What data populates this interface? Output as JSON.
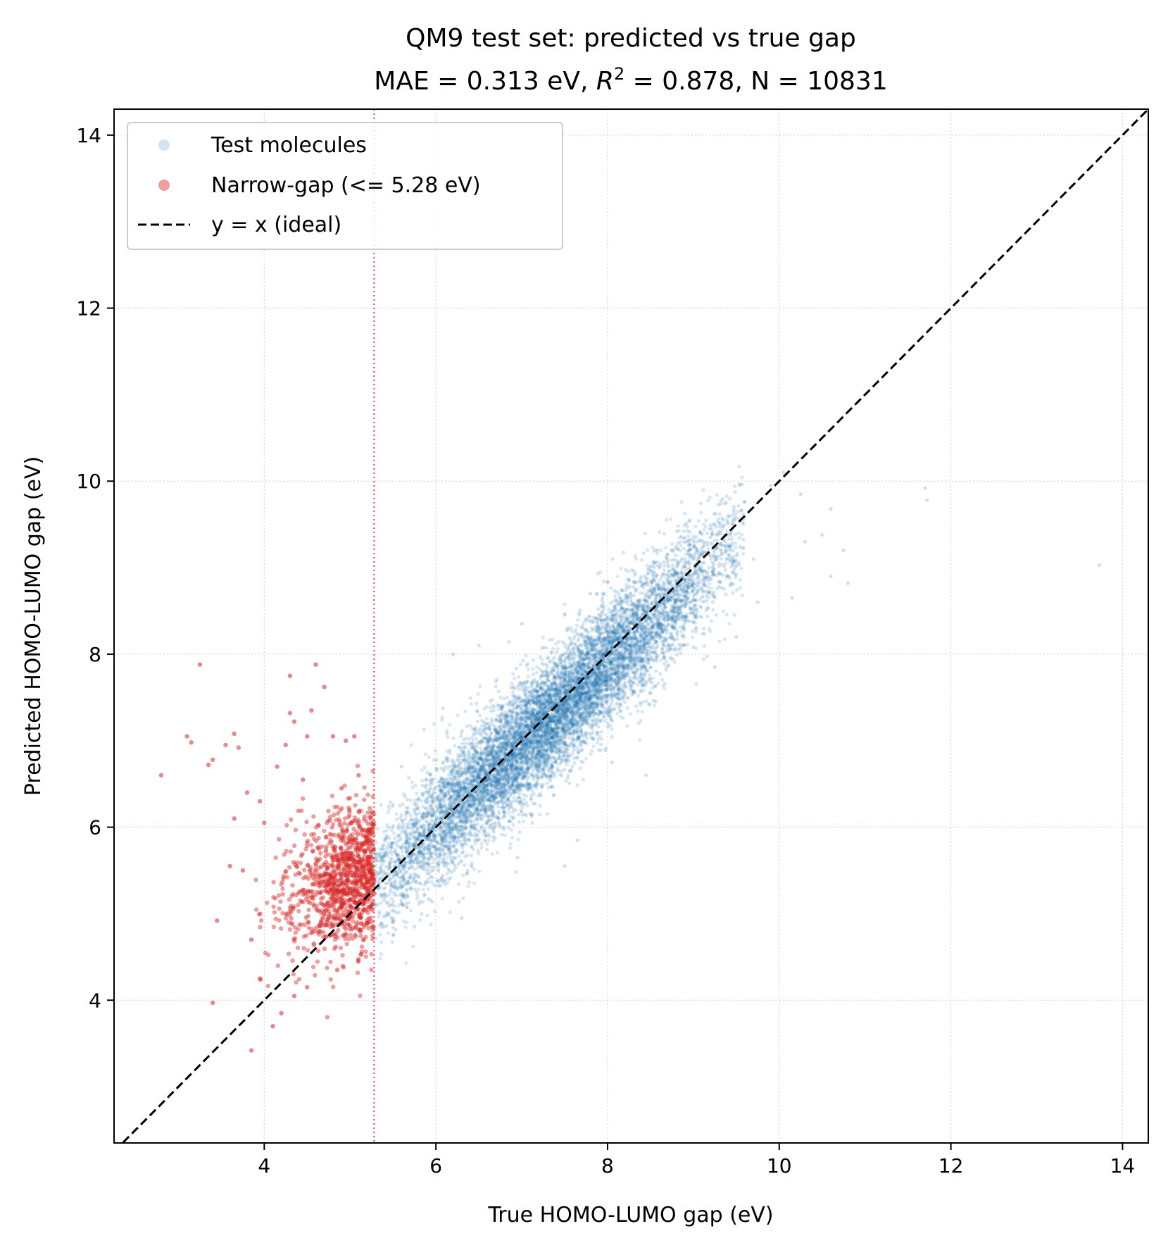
{
  "chart_data": {
    "type": "scatter",
    "title": "QM9 test set: predicted vs true gap",
    "subtitle": {
      "prefix": "MAE = 0.313 eV, ",
      "r_symbol": "R",
      "r_exponent": "2",
      "suffix": " = 0.878, N = 10831"
    },
    "xlabel": "True HOMO-LUMO gap (eV)",
    "ylabel": "Predicted HOMO-LUMO gap (eV)",
    "xlim": [
      2.25,
      14.3
    ],
    "ylim": [
      2.35,
      14.3
    ],
    "xticks": [
      "4",
      "6",
      "8",
      "10",
      "12",
      "14"
    ],
    "yticks": [
      "4",
      "6",
      "8",
      "10",
      "12",
      "14"
    ],
    "grid": true,
    "legend_position": "top-left",
    "threshold": 5.28,
    "colors": {
      "test": "#1f77b4",
      "narrow": "#d62728",
      "ideal": "#000000",
      "threshold": "#d62728"
    },
    "series": [
      {
        "name": "Test molecules",
        "kind": "points",
        "bulk": {
          "x_range": [
            5.28,
            9.6
          ],
          "slope": 0.93,
          "intercept": 0.45,
          "spread": 0.35,
          "count": 9700
        },
        "points": [
          [
            11.7,
            9.92
          ],
          [
            11.72,
            9.78
          ],
          [
            13.73,
            9.03
          ],
          [
            10.25,
            9.85
          ],
          [
            10.6,
            9.68
          ],
          [
            10.5,
            9.38
          ],
          [
            10.75,
            9.2
          ],
          [
            10.8,
            8.82
          ],
          [
            10.6,
            8.9
          ],
          [
            10.15,
            8.65
          ],
          [
            9.75,
            8.6
          ],
          [
            9.5,
            8.2
          ],
          [
            9.25,
            7.85
          ],
          [
            10.05,
            10.1
          ],
          [
            9.9,
            9.95
          ],
          [
            7.65,
            5.85
          ],
          [
            6.95,
            5.65
          ],
          [
            7.5,
            5.55
          ],
          [
            6.3,
            4.95
          ],
          [
            5.6,
            6.7
          ],
          [
            6.2,
            8.0
          ],
          [
            6.5,
            8.1
          ],
          [
            7.0,
            8.35
          ],
          [
            8.45,
            6.6
          ],
          [
            8.05,
            6.75
          ],
          [
            5.5,
            4.75
          ],
          [
            5.75,
            4.85
          ],
          [
            9.7,
            9.1
          ],
          [
            10.3,
            9.3
          ],
          [
            7.8,
            8.7
          ]
        ]
      },
      {
        "name": "Narrow-gap (<= 5.28 eV)",
        "kind": "points",
        "bulk": {
          "x_range": [
            3.9,
            5.28
          ],
          "center_y": 5.35,
          "spread": 0.4,
          "count": 1080
        },
        "points": [
          [
            2.8,
            6.6
          ],
          [
            3.1,
            7.05
          ],
          [
            3.15,
            6.98
          ],
          [
            3.25,
            7.88
          ],
          [
            3.35,
            6.72
          ],
          [
            3.4,
            6.78
          ],
          [
            3.4,
            3.97
          ],
          [
            3.55,
            6.95
          ],
          [
            3.65,
            7.08
          ],
          [
            3.7,
            6.92
          ],
          [
            3.65,
            6.1
          ],
          [
            3.8,
            6.4
          ],
          [
            3.45,
            4.92
          ],
          [
            3.6,
            5.55
          ],
          [
            3.85,
            3.42
          ],
          [
            4.1,
            3.7
          ],
          [
            4.3,
            7.75
          ],
          [
            4.3,
            7.32
          ],
          [
            4.35,
            7.22
          ],
          [
            4.55,
            7.35
          ],
          [
            4.6,
            7.88
          ],
          [
            4.7,
            7.62
          ],
          [
            4.5,
            7.05
          ],
          [
            4.8,
            7.05
          ],
          [
            4.95,
            7.0
          ],
          [
            5.05,
            7.05
          ],
          [
            4.25,
            6.95
          ],
          [
            4.15,
            6.7
          ],
          [
            4.45,
            6.55
          ],
          [
            3.95,
            6.3
          ],
          [
            4.9,
            6.45
          ],
          [
            5.1,
            6.6
          ],
          [
            4.0,
            6.05
          ],
          [
            3.75,
            5.5
          ],
          [
            4.35,
            4.05
          ],
          [
            4.2,
            3.85
          ],
          [
            3.95,
            4.25
          ],
          [
            4.5,
            4.15
          ],
          [
            4.85,
            4.35
          ],
          [
            3.85,
            4.7
          ]
        ]
      },
      {
        "name": "y = x (ideal)",
        "kind": "line",
        "x": [
          2.25,
          14.3
        ],
        "y": [
          2.25,
          14.3
        ]
      }
    ]
  }
}
